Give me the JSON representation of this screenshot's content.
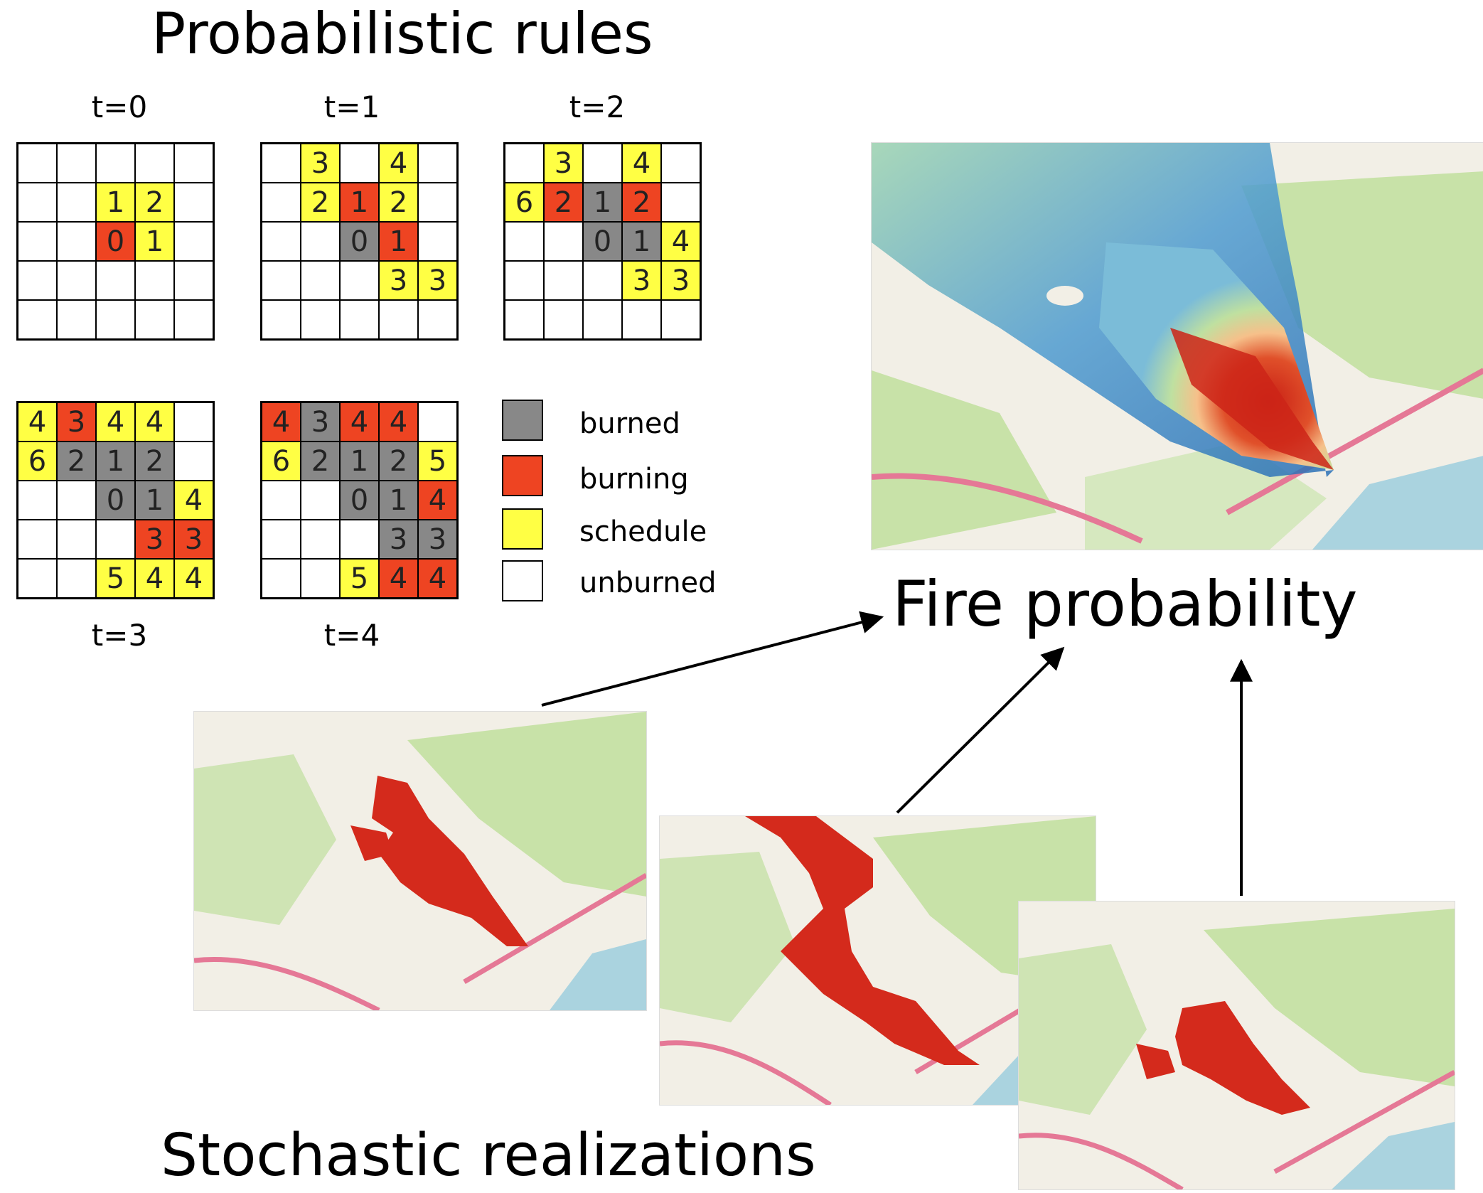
{
  "titles": {
    "rules": "Probabilistic  rules",
    "probability": "Fire probability",
    "realizations": "Stochastic realizations"
  },
  "time_labels": [
    "t=0",
    "t=1",
    "t=2",
    "t=3",
    "t=4"
  ],
  "grids": [
    {
      "label": "t=0",
      "cells": [
        [
          "w",
          "",
          "w",
          "",
          "w",
          "",
          "w",
          "",
          "w",
          ""
        ],
        [],
        [],
        [],
        []
      ]
    }
  ],
  "grid_states": {
    "t0": [
      [
        [
          "w",
          ""
        ],
        [
          "w",
          ""
        ],
        [
          "w",
          ""
        ],
        [
          "w",
          ""
        ],
        [
          "w",
          ""
        ]
      ],
      [
        [
          "w",
          ""
        ],
        [
          "w",
          ""
        ],
        [
          "y",
          "1"
        ],
        [
          "y",
          "2"
        ],
        [
          "w",
          ""
        ]
      ],
      [
        [
          "w",
          ""
        ],
        [
          "w",
          ""
        ],
        [
          "r",
          "0"
        ],
        [
          "y",
          "1"
        ],
        [
          "w",
          ""
        ]
      ],
      [
        [
          "w",
          ""
        ],
        [
          "w",
          ""
        ],
        [
          "w",
          ""
        ],
        [
          "w",
          ""
        ],
        [
          "w",
          ""
        ]
      ],
      [
        [
          "w",
          ""
        ],
        [
          "w",
          ""
        ],
        [
          "w",
          ""
        ],
        [
          "w",
          ""
        ],
        [
          "w",
          ""
        ]
      ]
    ],
    "t1": [
      [
        [
          "w",
          ""
        ],
        [
          "y",
          "3"
        ],
        [
          "w",
          ""
        ],
        [
          "y",
          "4"
        ],
        [
          "w",
          ""
        ]
      ],
      [
        [
          "w",
          ""
        ],
        [
          "y",
          "2"
        ],
        [
          "r",
          "1"
        ],
        [
          "y",
          "2"
        ],
        [
          "w",
          ""
        ]
      ],
      [
        [
          "w",
          ""
        ],
        [
          "w",
          ""
        ],
        [
          "g",
          "0"
        ],
        [
          "r",
          "1"
        ],
        [
          "w",
          ""
        ]
      ],
      [
        [
          "w",
          ""
        ],
        [
          "w",
          ""
        ],
        [
          "w",
          ""
        ],
        [
          "y",
          "3"
        ],
        [
          "y",
          "3"
        ]
      ],
      [
        [
          "w",
          ""
        ],
        [
          "w",
          ""
        ],
        [
          "w",
          ""
        ],
        [
          "w",
          ""
        ],
        [
          "w",
          ""
        ]
      ]
    ],
    "t2": [
      [
        [
          "w",
          ""
        ],
        [
          "y",
          "3"
        ],
        [
          "w",
          ""
        ],
        [
          "y",
          "4"
        ],
        [
          "w",
          ""
        ]
      ],
      [
        [
          "y",
          "6"
        ],
        [
          "r",
          "2"
        ],
        [
          "g",
          "1"
        ],
        [
          "r",
          "2"
        ],
        [
          "w",
          ""
        ]
      ],
      [
        [
          "w",
          ""
        ],
        [
          "w",
          ""
        ],
        [
          "g",
          "0"
        ],
        [
          "g",
          "1"
        ],
        [
          "y",
          "4"
        ]
      ],
      [
        [
          "w",
          ""
        ],
        [
          "w",
          ""
        ],
        [
          "w",
          ""
        ],
        [
          "y",
          "3"
        ],
        [
          "y",
          "3"
        ]
      ],
      [
        [
          "w",
          ""
        ],
        [
          "w",
          ""
        ],
        [
          "w",
          ""
        ],
        [
          "w",
          ""
        ],
        [
          "w",
          ""
        ]
      ]
    ],
    "t3": [
      [
        [
          "y",
          "4"
        ],
        [
          "r",
          "3"
        ],
        [
          "y",
          "4"
        ],
        [
          "y",
          "4"
        ],
        [
          "w",
          ""
        ]
      ],
      [
        [
          "y",
          "6"
        ],
        [
          "g",
          "2"
        ],
        [
          "g",
          "1"
        ],
        [
          "g",
          "2"
        ],
        [
          "w",
          ""
        ]
      ],
      [
        [
          "w",
          ""
        ],
        [
          "w",
          ""
        ],
        [
          "g",
          "0"
        ],
        [
          "g",
          "1"
        ],
        [
          "y",
          "4"
        ]
      ],
      [
        [
          "w",
          ""
        ],
        [
          "w",
          ""
        ],
        [
          "w",
          ""
        ],
        [
          "r",
          "3"
        ],
        [
          "r",
          "3"
        ]
      ],
      [
        [
          "w",
          ""
        ],
        [
          "w",
          ""
        ],
        [
          "y",
          "5"
        ],
        [
          "y",
          "4"
        ],
        [
          "y",
          "4"
        ]
      ]
    ],
    "t4": [
      [
        [
          "r",
          "4"
        ],
        [
          "g",
          "3"
        ],
        [
          "r",
          "4"
        ],
        [
          "r",
          "4"
        ],
        [
          "w",
          ""
        ]
      ],
      [
        [
          "y",
          "6"
        ],
        [
          "g",
          "2"
        ],
        [
          "g",
          "1"
        ],
        [
          "g",
          "2"
        ],
        [
          "y",
          "5"
        ]
      ],
      [
        [
          "w",
          ""
        ],
        [
          "w",
          ""
        ],
        [
          "g",
          "0"
        ],
        [
          "g",
          "1"
        ],
        [
          "r",
          "4"
        ]
      ],
      [
        [
          "w",
          ""
        ],
        [
          "w",
          ""
        ],
        [
          "w",
          ""
        ],
        [
          "g",
          "3"
        ],
        [
          "g",
          "3"
        ]
      ],
      [
        [
          "w",
          ""
        ],
        [
          "w",
          ""
        ],
        [
          "y",
          "5"
        ],
        [
          "r",
          "4"
        ],
        [
          "r",
          "4"
        ]
      ]
    ]
  },
  "legend": [
    {
      "label": "burned",
      "color": "#888888"
    },
    {
      "label": "burning",
      "color": "#ee4422"
    },
    {
      "label": "schedule",
      "color": "#ffff44"
    },
    {
      "label": "unburned",
      "color": "#ffffff"
    }
  ],
  "colors": {
    "burned": "#888888",
    "burning": "#ee4422",
    "schedule": "#ffff44",
    "unburned": "#ffffff",
    "fire_red": "#d42a1c",
    "map_green": "#c8e2a8",
    "map_bg": "#f2efe6",
    "sea": "#aad3df"
  }
}
